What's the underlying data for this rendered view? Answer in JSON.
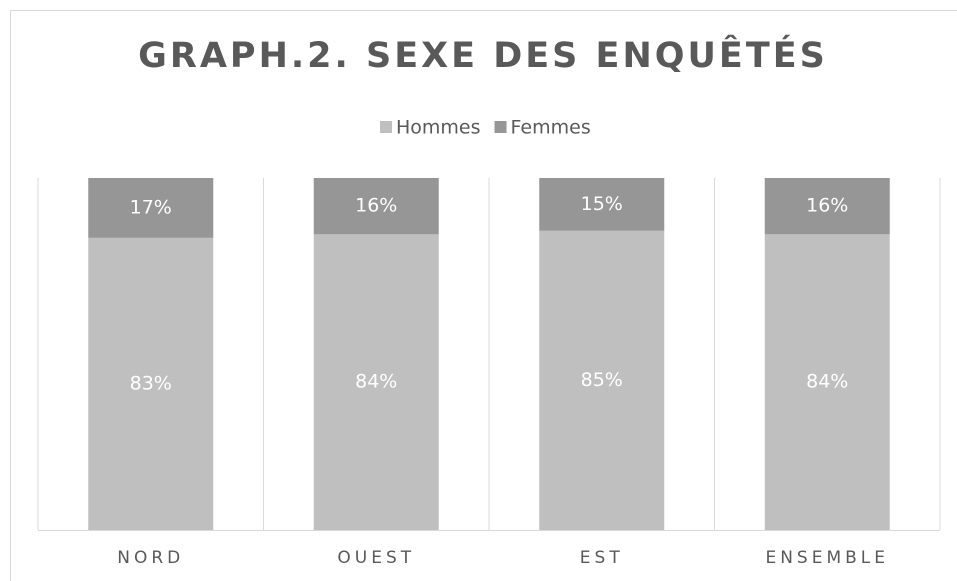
{
  "chart_data": {
    "type": "bar",
    "stacked": true,
    "title": "GRAPH.2. SEXE DES ENQUÊTÉS",
    "categories": [
      "NORD",
      "OUEST",
      "EST",
      "ENSEMBLE"
    ],
    "series": [
      {
        "name": "Hommes",
        "color": "#bfbfbf",
        "values": [
          83,
          84,
          85,
          84
        ],
        "value_labels": [
          "83%",
          "84%",
          "85%",
          "84%"
        ]
      },
      {
        "name": "Femmes",
        "color": "#969696",
        "values": [
          17,
          16,
          15,
          16
        ],
        "value_labels": [
          "17%",
          "16%",
          "15%",
          "16%"
        ]
      }
    ],
    "ylim": [
      0,
      100
    ],
    "legend": "top",
    "grid": true
  }
}
